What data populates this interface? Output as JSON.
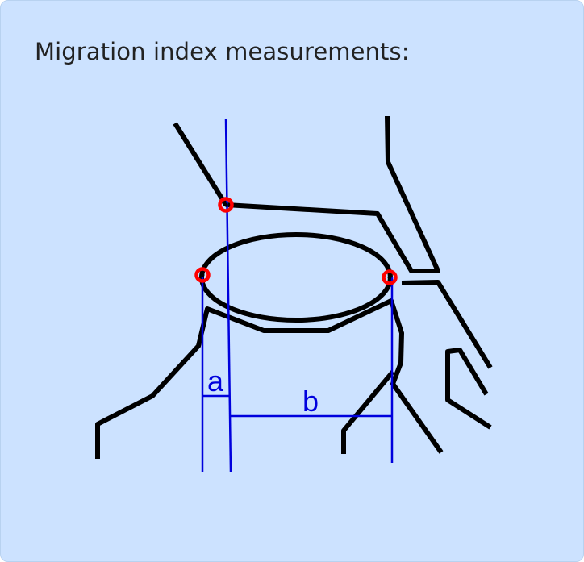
{
  "title": "Migration index measurements:",
  "labels": {
    "a": "a",
    "b": "b"
  },
  "colors": {
    "background": "#cce2ff",
    "outline": "#000000",
    "measurement": "#0000dd",
    "landmark": "#ff0000"
  }
}
